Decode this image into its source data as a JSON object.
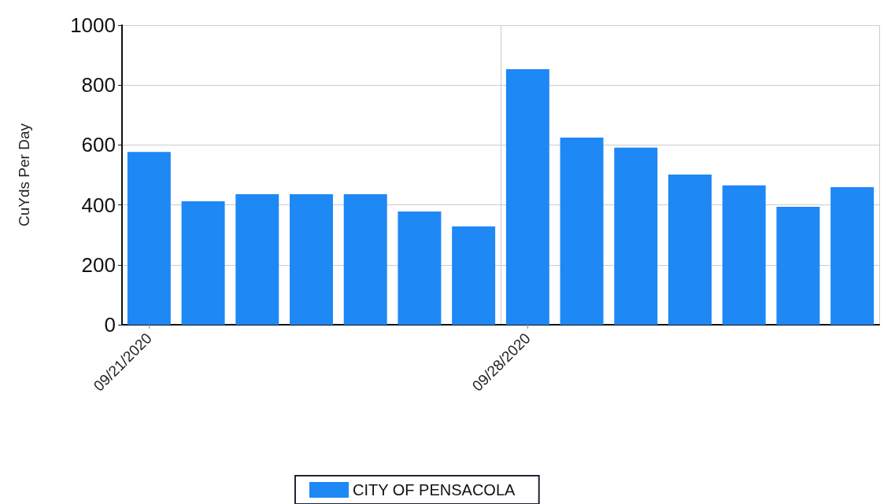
{
  "chart_data": {
    "type": "bar",
    "ylabel": "CuYds Per Day",
    "categories": [
      "09/21/2020",
      null,
      null,
      null,
      null,
      null,
      null,
      "09/28/2020",
      null,
      null,
      null,
      null,
      null,
      null
    ],
    "series": [
      {
        "name": "CITY OF PENSACOLA",
        "color": "#1e88f5",
        "values": [
          577,
          412,
          436,
          436,
          436,
          378,
          328,
          853,
          625,
          591,
          501,
          465,
          394,
          459
        ]
      }
    ],
    "ylim": [
      0,
      1000
    ],
    "yticks": [
      0,
      200,
      400,
      600,
      800,
      1000
    ],
    "grid": true,
    "legend": "bottom"
  }
}
